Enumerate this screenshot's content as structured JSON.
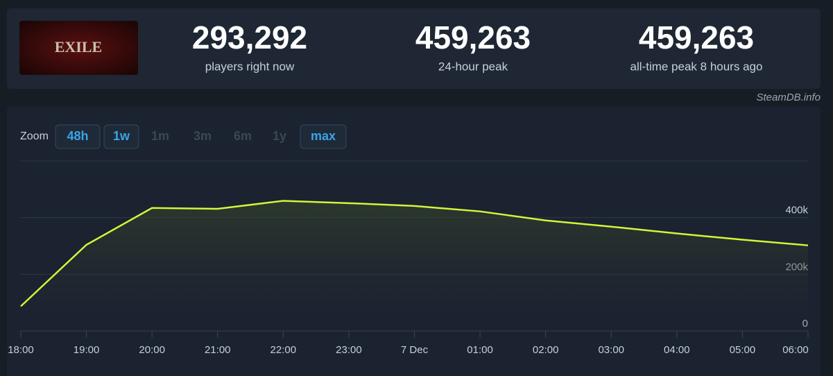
{
  "logo_text": "EXILE",
  "stats": [
    {
      "value": "293,292",
      "label": "players right now"
    },
    {
      "value": "459,263",
      "label": "24-hour peak"
    },
    {
      "value": "459,263",
      "label": "all-time peak 8 hours ago"
    }
  ],
  "site": "SteamDB.info",
  "zoom": {
    "label": "Zoom",
    "options": [
      {
        "text": "48h",
        "active": true
      },
      {
        "text": "1w",
        "active": true
      },
      {
        "text": "1m",
        "active": false
      },
      {
        "text": "3m",
        "active": false
      },
      {
        "text": "6m",
        "active": false
      },
      {
        "text": "1y",
        "active": false
      },
      {
        "text": "max",
        "active": true
      }
    ]
  },
  "chart_data": {
    "type": "line",
    "color": "#d4f53a",
    "categories": [
      "18:00",
      "19:00",
      "20:00",
      "21:00",
      "22:00",
      "23:00",
      "7 Dec",
      "01:00",
      "02:00",
      "03:00",
      "04:00",
      "05:00",
      "06:00"
    ],
    "values": [
      87000,
      304000,
      434000,
      431000,
      459263,
      451000,
      441000,
      422000,
      390000,
      368000,
      344000,
      322000,
      302000
    ],
    "ylim": [
      0,
      600000
    ],
    "yticks": [
      {
        "value": 0,
        "label": "0"
      },
      {
        "value": 200000,
        "label": "200k"
      },
      {
        "value": 400000,
        "label": "400k"
      }
    ],
    "grid": true
  }
}
